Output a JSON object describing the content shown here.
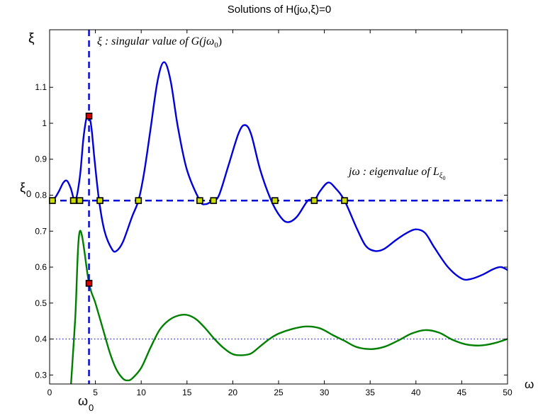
{
  "chart_data": {
    "type": "line",
    "title": "Solutions of H(jω,ξ)=0",
    "xlabel": "ω",
    "ylabel": "ξ",
    "y0_label": "ξ",
    "y0_sub": "0",
    "x0_label": "ω",
    "x0_sub": "0",
    "xlim": [
      0,
      50
    ],
    "ylim": [
      0.275,
      1.26
    ],
    "xticks": [
      0,
      5,
      10,
      15,
      20,
      25,
      30,
      35,
      40,
      45,
      50
    ],
    "yticks": [
      0.3,
      0.4,
      0.5,
      0.6,
      0.7,
      0.8,
      0.9,
      1,
      1.1
    ],
    "xi0": 0.785,
    "omega0": 4.3,
    "dotted_level": 0.4,
    "annotations": {
      "vertical_pre": "ξ :  singular value of ",
      "vertical_G": "G",
      "vertical_arg": "(jω",
      "vertical_arg_sub": "0",
      "vertical_close": ")",
      "horizontal_pre": "jω :  eigenvalue of ",
      "horizontal_L": "L",
      "horizontal_L_sub": "ξ",
      "horizontal_L_subsub": "0"
    },
    "series": [
      {
        "color": "#0000dd",
        "points": [
          [
            0,
            0.785
          ],
          [
            0.5,
            0.79
          ],
          [
            1,
            0.81
          ],
          [
            1.5,
            0.835
          ],
          [
            1.9,
            0.84
          ],
          [
            2.3,
            0.82
          ],
          [
            2.8,
            0.785
          ],
          [
            3.3,
            0.85
          ],
          [
            3.7,
            0.96
          ],
          [
            4.1,
            1.02
          ],
          [
            4.5,
            1.0
          ],
          [
            4.9,
            0.9
          ],
          [
            5.4,
            0.785
          ],
          [
            6,
            0.7
          ],
          [
            6.8,
            0.65
          ],
          [
            7.3,
            0.645
          ],
          [
            8,
            0.67
          ],
          [
            9,
            0.74
          ],
          [
            9.7,
            0.785
          ],
          [
            10.3,
            0.86
          ],
          [
            11,
            0.98
          ],
          [
            11.8,
            1.12
          ],
          [
            12.5,
            1.17
          ],
          [
            13.2,
            1.12
          ],
          [
            14,
            0.99
          ],
          [
            15,
            0.87
          ],
          [
            16.4,
            0.785
          ],
          [
            17,
            0.775
          ],
          [
            17.5,
            0.78
          ],
          [
            17.9,
            0.785
          ],
          [
            18.5,
            0.8
          ],
          [
            19.5,
            0.88
          ],
          [
            20.6,
            0.97
          ],
          [
            21.3,
            0.995
          ],
          [
            22,
            0.97
          ],
          [
            23,
            0.87
          ],
          [
            24.2,
            0.785
          ],
          [
            25.2,
            0.74
          ],
          [
            26,
            0.725
          ],
          [
            27,
            0.74
          ],
          [
            28.2,
            0.785
          ],
          [
            28.9,
            0.785
          ],
          [
            29.5,
            0.81
          ],
          [
            30.4,
            0.835
          ],
          [
            31.2,
            0.82
          ],
          [
            32.2,
            0.785
          ],
          [
            33.5,
            0.71
          ],
          [
            34.5,
            0.66
          ],
          [
            35.5,
            0.645
          ],
          [
            36.5,
            0.65
          ],
          [
            37.8,
            0.675
          ],
          [
            39,
            0.695
          ],
          [
            40,
            0.705
          ],
          [
            41,
            0.695
          ],
          [
            42,
            0.655
          ],
          [
            43.5,
            0.6
          ],
          [
            45,
            0.568
          ],
          [
            46,
            0.567
          ],
          [
            47.2,
            0.578
          ],
          [
            48.5,
            0.595
          ],
          [
            49.3,
            0.6
          ],
          [
            50,
            0.592
          ]
        ]
      },
      {
        "color": "#008000",
        "points": [
          [
            2.3,
            0.26
          ],
          [
            2.8,
            0.46
          ],
          [
            3.3,
            0.7
          ],
          [
            4.3,
            0.555
          ],
          [
            5,
            0.5
          ],
          [
            5.8,
            0.43
          ],
          [
            6.6,
            0.36
          ],
          [
            7.3,
            0.315
          ],
          [
            8,
            0.29
          ],
          [
            8.5,
            0.285
          ],
          [
            9,
            0.29
          ],
          [
            10,
            0.32
          ],
          [
            11,
            0.375
          ],
          [
            12,
            0.425
          ],
          [
            13,
            0.452
          ],
          [
            14,
            0.465
          ],
          [
            15,
            0.467
          ],
          [
            16,
            0.455
          ],
          [
            17,
            0.43
          ],
          [
            18,
            0.4
          ],
          [
            19,
            0.375
          ],
          [
            20,
            0.358
          ],
          [
            21,
            0.355
          ],
          [
            22,
            0.36
          ],
          [
            23,
            0.38
          ],
          [
            24,
            0.4
          ],
          [
            25,
            0.415
          ],
          [
            26.5,
            0.428
          ],
          [
            28,
            0.435
          ],
          [
            29.5,
            0.43
          ],
          [
            31,
            0.41
          ],
          [
            32.2,
            0.395
          ],
          [
            33.5,
            0.378
          ],
          [
            35,
            0.372
          ],
          [
            36.5,
            0.378
          ],
          [
            38,
            0.395
          ],
          [
            39.5,
            0.415
          ],
          [
            41,
            0.425
          ],
          [
            42.5,
            0.418
          ],
          [
            44,
            0.398
          ],
          [
            45.5,
            0.385
          ],
          [
            47,
            0.382
          ],
          [
            48.5,
            0.388
          ],
          [
            50,
            0.4
          ]
        ]
      }
    ],
    "xi0_crossings": [
      0.3,
      2.6,
      3.3,
      5.5,
      9.7,
      16.4,
      17.9,
      24.6,
      28.9,
      32.2
    ],
    "omega0_points": [
      1.02,
      0.555
    ]
  }
}
